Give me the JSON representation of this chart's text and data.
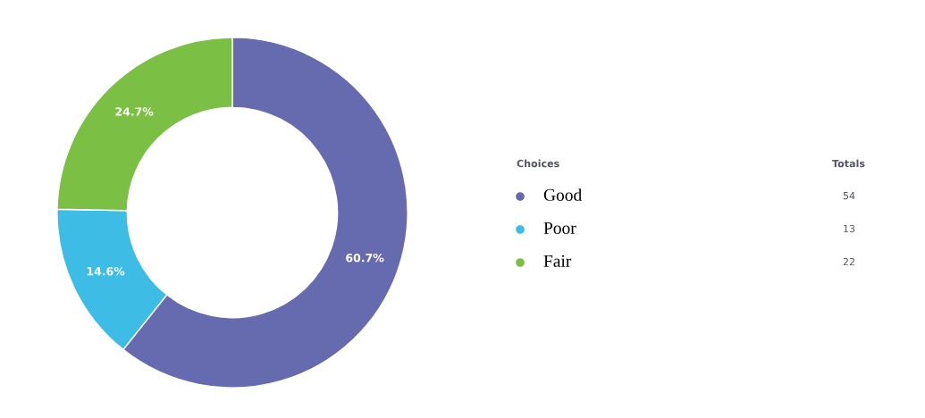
{
  "chart_data": {
    "type": "donut",
    "categories": [
      "Good",
      "Poor",
      "Fair"
    ],
    "values": [
      60.7,
      14.6,
      24.7
    ],
    "colors": [
      "#666bb0",
      "#3dbce6",
      "#7bbf44"
    ],
    "value_labels": [
      "60.7%",
      "14.6%",
      "24.7%"
    ],
    "legend": "right",
    "legend_title": "Choices",
    "annotations": [
      "Totals",
      "54",
      "13",
      "22"
    ]
  }
}
